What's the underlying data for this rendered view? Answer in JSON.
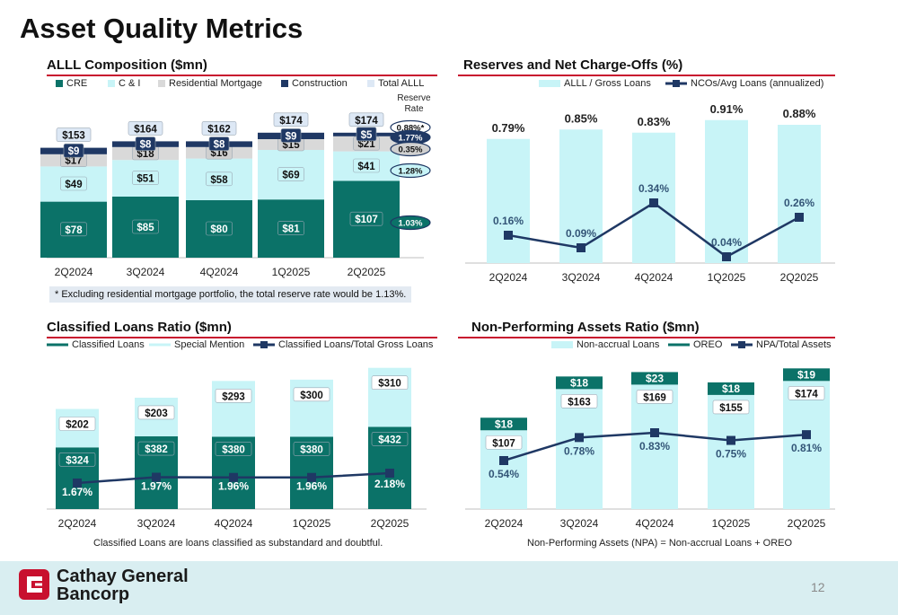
{
  "page": {
    "title": "Asset Quality Metrics",
    "page_number": "12",
    "company_line1": "Cathay General",
    "company_line2": "Bancorp"
  },
  "colors": {
    "cre": "#0b7268",
    "ci": "#c8f4f7",
    "resmort": "#d9d9d9",
    "construction": "#1f3864",
    "total": "#dde8f5",
    "accent_red": "#c8102e"
  },
  "chart_data": [
    {
      "type": "bar",
      "title": "ALLL Composition ($mn)",
      "stacked": true,
      "categories": [
        "2Q2024",
        "3Q2024",
        "4Q2024",
        "1Q2025",
        "2Q2025"
      ],
      "series": [
        {
          "name": "CRE",
          "values": [
            78,
            85,
            80,
            81,
            107
          ],
          "labels": [
            "$78",
            "$85",
            "$80",
            "$81",
            "$107"
          ]
        },
        {
          "name": "C & I",
          "values": [
            49,
            51,
            58,
            69,
            41
          ],
          "labels": [
            "$49",
            "$51",
            "$58",
            "$69",
            "$41"
          ]
        },
        {
          "name": "Residential Mortgage",
          "values": [
            17,
            18,
            16,
            15,
            21
          ],
          "labels": [
            "$17",
            "$18",
            "$16",
            "$15",
            "$21"
          ]
        },
        {
          "name": "Construction",
          "values": [
            9,
            8,
            8,
            9,
            5
          ],
          "labels": [
            "$9",
            "$8",
            "$8",
            "$9",
            "$5"
          ]
        }
      ],
      "legend_extra": "Total ALLL",
      "totals": [
        "$153",
        "$164",
        "$162",
        "$174",
        "$174"
      ],
      "reserve_rate_header": "Reserve Rate",
      "reserve_rates": [
        "0.88%*",
        "1.77%",
        "0.35%",
        "1.28%",
        "1.03%"
      ],
      "footnote": "* Excluding residential mortgage portfolio, the total reserve rate would be 1.13%."
    },
    {
      "type": "bar",
      "title": "Reserves and Net Charge-Offs (%)",
      "categories": [
        "2Q2024",
        "3Q2024",
        "4Q2024",
        "1Q2025",
        "2Q2025"
      ],
      "series": [
        {
          "name": "ALLL / Gross Loans",
          "values": [
            0.79,
            0.85,
            0.83,
            0.91,
            0.88
          ],
          "labels": [
            "0.79%",
            "0.85%",
            "0.83%",
            "0.91%",
            "0.88%"
          ]
        },
        {
          "name": "NCOs/Avg Loans (annualized)",
          "type": "line",
          "values": [
            0.16,
            0.09,
            0.34,
            0.04,
            0.26
          ],
          "labels": [
            "0.16%",
            "0.09%",
            "0.34%",
            "0.04%",
            "0.26%"
          ]
        }
      ]
    },
    {
      "type": "bar",
      "title": "Classified Loans Ratio ($mn)",
      "stacked": true,
      "categories": [
        "2Q2024",
        "3Q2024",
        "4Q2024",
        "1Q2025",
        "2Q2025"
      ],
      "series": [
        {
          "name": "Classified Loans",
          "values": [
            324,
            382,
            380,
            380,
            432
          ],
          "labels": [
            "$324",
            "$382",
            "$380",
            "$380",
            "$432"
          ]
        },
        {
          "name": "Special Mention",
          "values": [
            202,
            203,
            293,
            300,
            310
          ],
          "labels": [
            "$202",
            "$203",
            "$293",
            "$300",
            "$310"
          ]
        },
        {
          "name": "Classified Loans/Total Gross Loans",
          "type": "line",
          "values": [
            1.67,
            1.97,
            1.96,
            1.96,
            2.18
          ],
          "labels": [
            "1.67%",
            "1.97%",
            "1.96%",
            "1.96%",
            "2.18%"
          ]
        }
      ],
      "note": "Classified Loans are loans classified as substandard and doubtful."
    },
    {
      "type": "bar",
      "title": "Non-Performing Assets Ratio ($mn)",
      "stacked": true,
      "categories": [
        "2Q2024",
        "3Q2024",
        "4Q2024",
        "1Q2025",
        "2Q2025"
      ],
      "series": [
        {
          "name": "Non-accrual Loans",
          "values": [
            107,
            163,
            169,
            155,
            174
          ],
          "labels": [
            "$107",
            "$163",
            "$169",
            "$155",
            "$174"
          ]
        },
        {
          "name": "OREO",
          "values": [
            18,
            18,
            23,
            18,
            19
          ],
          "labels": [
            "$18",
            "$18",
            "$23",
            "$18",
            "$19"
          ]
        },
        {
          "name": "NPA/Total Assets",
          "type": "line",
          "values": [
            0.54,
            0.78,
            0.83,
            0.75,
            0.81
          ],
          "labels": [
            "0.54%",
            "0.78%",
            "0.83%",
            "0.75%",
            "0.81%"
          ]
        }
      ],
      "note": "Non-Performing Assets (NPA) = Non-accrual Loans + OREO"
    }
  ]
}
